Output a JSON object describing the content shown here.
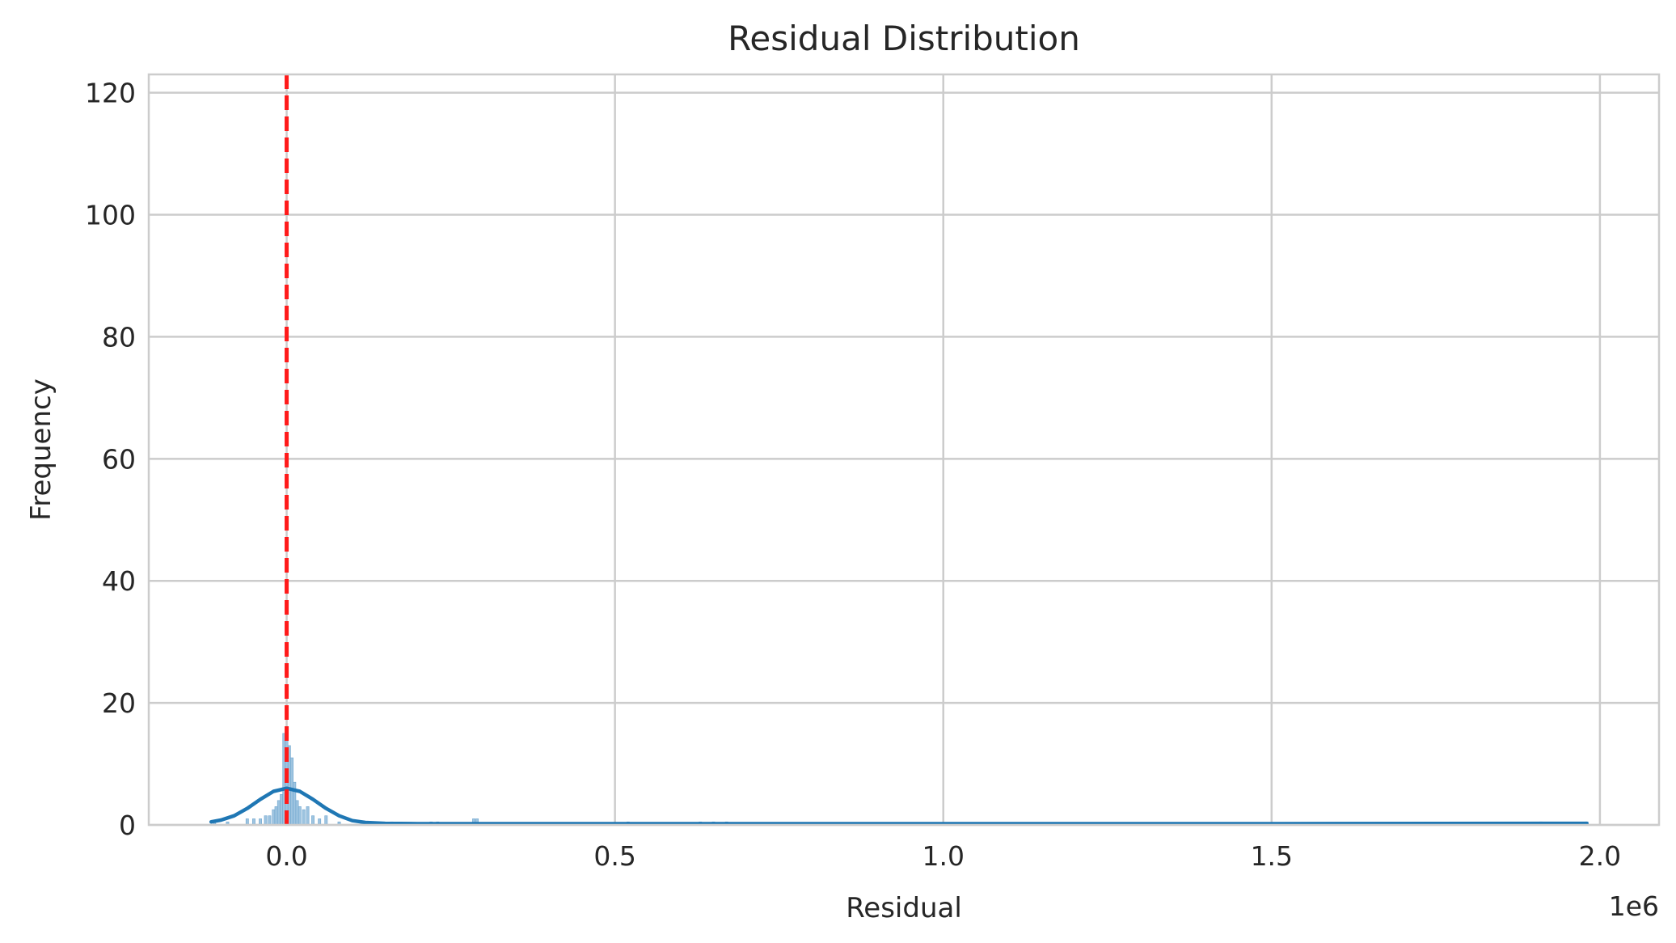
{
  "chart_data": {
    "type": "histogram",
    "title": "Residual Distribution",
    "xlabel": "Residual",
    "ylabel": "Frequency",
    "x_offset_label": "1e6",
    "x_scale": 1000000,
    "xlim": [
      -0.21,
      2.09
    ],
    "ylim": [
      0,
      123
    ],
    "xticks": [
      0.0,
      0.5,
      1.0,
      1.5,
      2.0
    ],
    "xtick_labels": [
      "0.0",
      "0.5",
      "1.0",
      "1.5",
      "2.0"
    ],
    "yticks": [
      0,
      20,
      40,
      60,
      80,
      100,
      120
    ],
    "ytick_labels": [
      "0",
      "20",
      "40",
      "60",
      "80",
      "100",
      "120"
    ],
    "grid": true,
    "bin_width": 0.004,
    "histogram_bins": [
      {
        "x": -0.11,
        "count": 0.5
      },
      {
        "x": -0.09,
        "count": 0.5
      },
      {
        "x": -0.06,
        "count": 1
      },
      {
        "x": -0.05,
        "count": 1
      },
      {
        "x": -0.04,
        "count": 1
      },
      {
        "x": -0.032,
        "count": 1.5
      },
      {
        "x": -0.026,
        "count": 1.5
      },
      {
        "x": -0.02,
        "count": 2.5
      },
      {
        "x": -0.016,
        "count": 3
      },
      {
        "x": -0.012,
        "count": 4
      },
      {
        "x": -0.008,
        "count": 5
      },
      {
        "x": -0.004,
        "count": 15
      },
      {
        "x": 0.0,
        "count": 14
      },
      {
        "x": 0.004,
        "count": 13
      },
      {
        "x": 0.008,
        "count": 11
      },
      {
        "x": 0.012,
        "count": 7
      },
      {
        "x": 0.016,
        "count": 4
      },
      {
        "x": 0.02,
        "count": 3
      },
      {
        "x": 0.026,
        "count": 2.5
      },
      {
        "x": 0.032,
        "count": 3
      },
      {
        "x": 0.04,
        "count": 1.5
      },
      {
        "x": 0.05,
        "count": 1
      },
      {
        "x": 0.06,
        "count": 1.5
      },
      {
        "x": 0.08,
        "count": 0.5
      },
      {
        "x": 0.16,
        "count": 0.5
      },
      {
        "x": 0.22,
        "count": 0.5
      },
      {
        "x": 0.23,
        "count": 0.5
      },
      {
        "x": 0.285,
        "count": 1
      },
      {
        "x": 0.29,
        "count": 1
      },
      {
        "x": 0.52,
        "count": 0.5
      },
      {
        "x": 0.63,
        "count": 0.5
      },
      {
        "x": 0.65,
        "count": 0.5
      },
      {
        "x": 0.67,
        "count": 0.5
      },
      {
        "x": 1.91,
        "count": 0.5
      },
      {
        "x": 1.98,
        "count": 0.5
      }
    ],
    "kde_curve": {
      "x": [
        -0.115,
        -0.1,
        -0.08,
        -0.06,
        -0.04,
        -0.02,
        0.0,
        0.02,
        0.04,
        0.06,
        0.08,
        0.1,
        0.12,
        0.15,
        0.2,
        0.3,
        0.5,
        1.0,
        1.5,
        1.98
      ],
      "y": [
        0.5,
        0.8,
        1.5,
        2.7,
        4.2,
        5.5,
        6.0,
        5.5,
        4.2,
        2.7,
        1.5,
        0.7,
        0.4,
        0.25,
        0.2,
        0.2,
        0.2,
        0.2,
        0.2,
        0.25
      ]
    },
    "reference_line": {
      "x": 0.0,
      "style": "dashed"
    },
    "colors": {
      "bars": "#9ec4e0",
      "bar_edge": "#6fa6cf",
      "kde": "#1f77b4",
      "reference_line": "#ff1a1a",
      "grid": "#cccccc",
      "text": "#262626"
    }
  }
}
